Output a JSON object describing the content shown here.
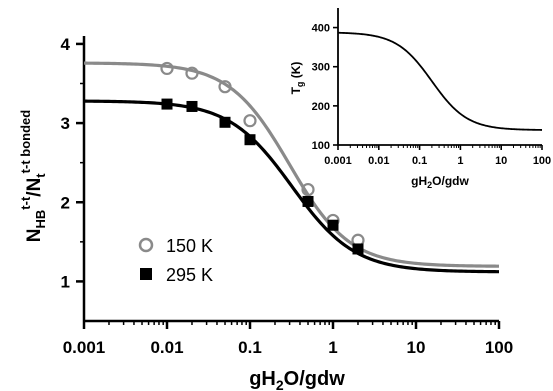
{
  "chart_data": [
    {
      "type": "scatter",
      "xscale": "log",
      "xlim": [
        0.001,
        100
      ],
      "ylim": [
        0.5,
        4.1
      ],
      "xticks": [
        "0.001",
        "0.01",
        "0.1",
        "1",
        "10",
        "100"
      ],
      "yticks": [
        "1",
        "2",
        "3",
        "4"
      ],
      "xlabel": "gH₂O/gdw",
      "ylabel": "N_HB^(t-t)/N_t^(t-t bonded)",
      "legend": "left",
      "series": [
        {
          "name": "150 K",
          "marker": "open-circle",
          "color": "#8a8a8a",
          "x": [
            0.01,
            0.02,
            0.05,
            0.1,
            0.5,
            1,
            2
          ],
          "y": [
            3.69,
            3.63,
            3.46,
            3.03,
            2.16,
            1.77,
            1.52
          ],
          "fit": {
            "plateau_high": 3.76,
            "plateau_low": 1.19,
            "x50": 0.3,
            "hill": 1.2
          }
        },
        {
          "name": "295 K",
          "marker": "filled-square",
          "color": "#000000",
          "x": [
            0.01,
            0.02,
            0.05,
            0.1,
            0.5,
            1,
            2
          ],
          "y": [
            3.24,
            3.21,
            3.01,
            2.79,
            2.01,
            1.71,
            1.41
          ],
          "fit": {
            "plateau_high": 3.28,
            "plateau_low": 1.12,
            "x50": 0.32,
            "hill": 1.15
          }
        }
      ]
    },
    {
      "type": "line",
      "inset": true,
      "xscale": "log",
      "xlim": [
        0.001,
        100
      ],
      "ylim": [
        100,
        450
      ],
      "xticks": [
        "0.001",
        "0.01",
        "0.1",
        "1",
        "10",
        "100"
      ],
      "yticks": [
        "100",
        "200",
        "300",
        "400"
      ],
      "xlabel": "gH₂O/gdw",
      "ylabel": "T_g (K)",
      "series": [
        {
          "color": "#000000",
          "fit": {
            "plateau_high": 388,
            "plateau_low": 138,
            "x50": 0.2,
            "hill": 1.0
          }
        }
      ]
    }
  ]
}
